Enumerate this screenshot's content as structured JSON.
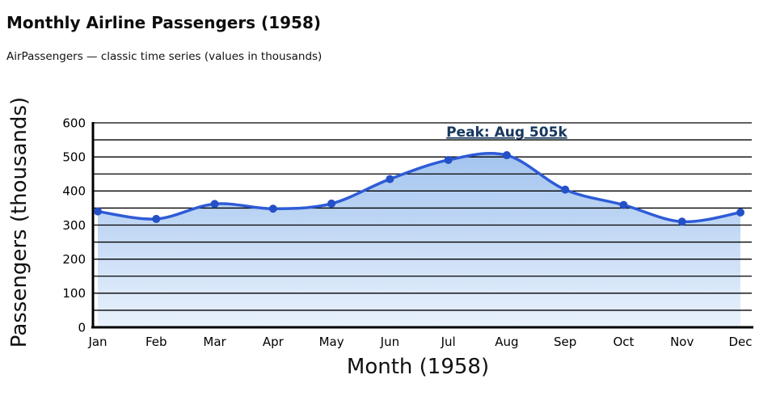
{
  "header": {
    "title": "Monthly Airline Passengers (1958)",
    "subtitle": "AirPassengers — classic time series (values in thousands)"
  },
  "chart_data": {
    "type": "area",
    "title": "Monthly Airline Passengers (1958)",
    "subtitle": "AirPassengers — classic time series (values in thousands)",
    "categories": [
      "Jan",
      "Feb",
      "Mar",
      "Apr",
      "May",
      "Jun",
      "Jul",
      "Aug",
      "Sep",
      "Oct",
      "Nov",
      "Dec"
    ],
    "values": [
      340,
      318,
      362,
      348,
      363,
      435,
      491,
      505,
      404,
      359,
      310,
      337
    ],
    "series_name": "Passengers",
    "xlabel": "Month (1958)",
    "ylabel": "Passengers (thousands)",
    "ylim": [
      0,
      600
    ],
    "ytick_labels": [
      0,
      100,
      200,
      300,
      400,
      500,
      600
    ],
    "ytick_step": 100,
    "grid_step": 50,
    "grid": true,
    "legend": false,
    "annotation": {
      "text": "Peak: Aug 505k",
      "x_category": "Aug",
      "y_value": 560
    },
    "colors": {
      "line": "#2e5bd7",
      "marker": "#2450c8",
      "fill_top": "#a3c4ef",
      "fill_bottom": "#e9f2fc",
      "grid": "#000000",
      "axis": "#000000",
      "annotation": "#17375e",
      "text": "#000000"
    }
  }
}
